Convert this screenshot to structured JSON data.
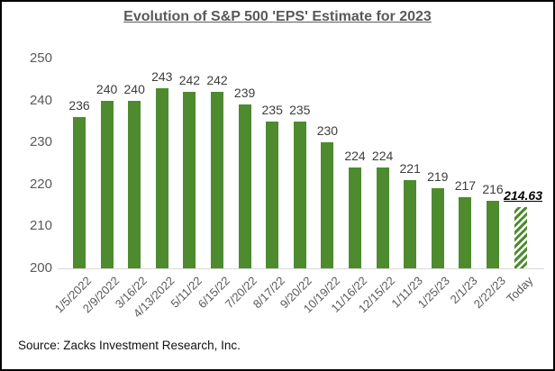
{
  "title": "Evolution of S&P 500 'EPS' Estimate for 2023",
  "source_note": "Source: Zacks Investment Research, Inc.",
  "colors": {
    "bar_green": "#4e8b2f",
    "title_gray": "#595959",
    "axis_label_gray": "#595959",
    "value_label_dark": "#3d3d3d",
    "final_value_black": "#000000",
    "baseline_gray": "#d9d9d9",
    "window_border": "#000000",
    "background": "#ffffff"
  },
  "chart_data": {
    "type": "bar",
    "title": "Evolution of S&P 500 'EPS' Estimate for 2023",
    "categories": [
      "1/5/2022",
      "2/9/2022",
      "3/16/22",
      "4/13/2022",
      "5/11/22",
      "6/15/22",
      "7/20/22",
      "8/17/22",
      "9/20/22",
      "10/19/22",
      "11/16/22",
      "12/15/22",
      "1/11/23",
      "1/25/23",
      "2/1/23",
      "2/22/23",
      "Today"
    ],
    "values": [
      236,
      240,
      240,
      243,
      242,
      242,
      239,
      235,
      235,
      230,
      224,
      224,
      221,
      219,
      217,
      216,
      214.63
    ],
    "value_labels": [
      "236",
      "240",
      "240",
      "243",
      "242",
      "242",
      "239",
      "235",
      "235",
      "230",
      "224",
      "224",
      "221",
      "219",
      "217",
      "216",
      "214.63"
    ],
    "final_bar_hatched": true,
    "xlabel": "",
    "ylabel": "",
    "ylim": [
      200,
      250
    ],
    "yticks": [
      200,
      210,
      220,
      230,
      240,
      250
    ],
    "grid": false,
    "legend": null,
    "annotation": "Source: Zacks Investment Research, Inc."
  }
}
